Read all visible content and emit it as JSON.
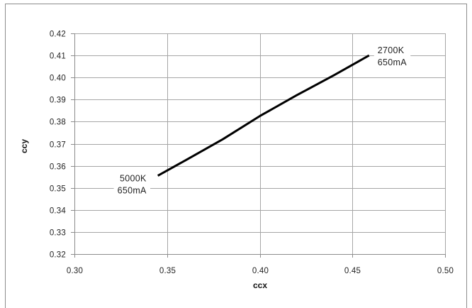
{
  "chart_data": {
    "type": "line",
    "title": "",
    "xlabel": "ccx",
    "ylabel": "ccy",
    "xlim": [
      0.3,
      0.5
    ],
    "ylim": [
      0.32,
      0.42
    ],
    "x_ticks": [
      "0.30",
      "0.35",
      "0.40",
      "0.45",
      "0.50"
    ],
    "y_ticks": [
      "0.32",
      "0.33",
      "0.34",
      "0.35",
      "0.36",
      "0.37",
      "0.38",
      "0.39",
      "0.40",
      "0.41",
      "0.42"
    ],
    "grid": true,
    "legend": "none",
    "series": [
      {
        "x": [
          0.345,
          0.36,
          0.38,
          0.4,
          0.42,
          0.44,
          0.459
        ],
        "y": [
          0.3555,
          0.3625,
          0.372,
          0.3825,
          0.392,
          0.401,
          0.41
        ]
      }
    ],
    "annotations": [
      {
        "lines": [
          "5000K",
          "650mA"
        ],
        "x": 0.345,
        "y": 0.3555,
        "placement": "left-below"
      },
      {
        "lines": [
          "2700K",
          "650mA"
        ],
        "x": 0.459,
        "y": 0.41,
        "placement": "right"
      }
    ],
    "colors": {
      "line": "#000000",
      "grid": "#a6a6a6",
      "axis": "#8c8c8c",
      "frame": "#8c8c8c"
    }
  }
}
